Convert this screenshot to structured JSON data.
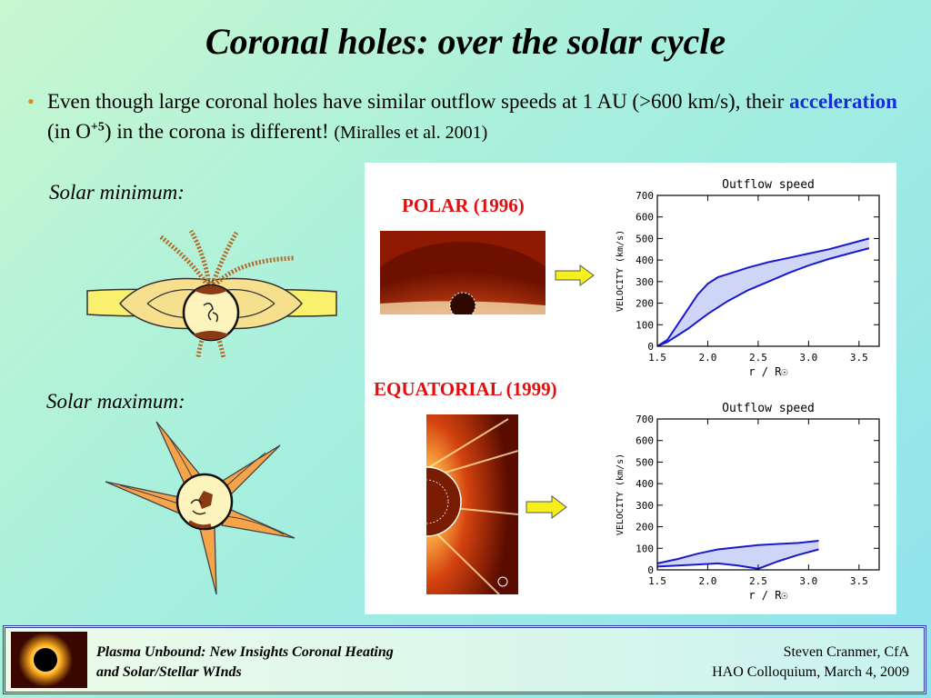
{
  "slide": {
    "title": "Coronal holes:  over the solar cycle",
    "bullet": {
      "part1": "Even though large coronal holes have similar outflow speeds at 1 AU (>600 km/s), their ",
      "accel": "acceleration",
      "part2": " (in O",
      "sup": "+5",
      "part3": ") in the corona is different!  ",
      "cite": "(Miralles et al. 2001)"
    },
    "solar_min_label": "Solar minimum:",
    "solar_max_label": "Solar maximum:",
    "polar_label": "POLAR (1996)",
    "equatorial_label": "EQUATORIAL (1999)"
  },
  "footer": {
    "left_line1": "Plasma Unbound:  New Insights Coronal Heating",
    "left_line2": "and Solar/Stellar WInds",
    "right_line1": "Steven Cranmer,  CfA",
    "right_line2": "HAO Colloquium, March 4, 2009"
  },
  "chart_data": [
    {
      "type": "area",
      "title": "Outflow speed",
      "xlabel": "r / R☉",
      "ylabel": "VELOCITY (km/s)",
      "xlim": [
        1.5,
        3.7
      ],
      "ylim": [
        0,
        700
      ],
      "xticks": [
        "1.5",
        "2.0",
        "2.5",
        "3.0",
        "3.5"
      ],
      "yticks": [
        "0",
        "100",
        "200",
        "300",
        "400",
        "500",
        "600",
        "700"
      ],
      "series": [
        {
          "x": [
            1.5,
            1.6,
            1.7,
            1.8,
            1.9,
            2.0,
            2.1,
            2.2,
            2.4,
            2.6,
            2.8,
            3.0,
            3.2,
            3.4,
            3.6
          ],
          "values": [
            0,
            30,
            100,
            170,
            240,
            290,
            320,
            335,
            365,
            390,
            410,
            430,
            450,
            475,
            500
          ]
        },
        {
          "x": [
            1.5,
            1.6,
            1.7,
            1.8,
            1.9,
            2.0,
            2.1,
            2.2,
            2.4,
            2.6,
            2.8,
            3.0,
            3.2,
            3.4,
            3.6
          ],
          "values": [
            0,
            20,
            50,
            80,
            115,
            150,
            180,
            210,
            260,
            300,
            340,
            375,
            405,
            430,
            455
          ]
        }
      ],
      "color": "#1a1acc",
      "fill": "#cfd5f7"
    },
    {
      "type": "area",
      "title": "Outflow speed",
      "xlabel": "r / R☉",
      "ylabel": "VELOCITY (km/s)",
      "xlim": [
        1.5,
        3.7
      ],
      "ylim": [
        0,
        700
      ],
      "xticks": [
        "1.5",
        "2.0",
        "2.5",
        "3.0",
        "3.5"
      ],
      "yticks": [
        "0",
        "100",
        "200",
        "300",
        "400",
        "500",
        "600",
        "700"
      ],
      "series": [
        {
          "x": [
            1.5,
            1.7,
            1.9,
            2.1,
            2.3,
            2.5,
            2.7,
            2.9,
            3.1
          ],
          "values": [
            30,
            50,
            75,
            95,
            105,
            115,
            120,
            125,
            135
          ]
        },
        {
          "x": [
            1.5,
            1.7,
            1.9,
            2.1,
            2.3,
            2.5,
            2.7,
            2.9,
            3.1
          ],
          "values": [
            15,
            20,
            25,
            30,
            20,
            5,
            40,
            70,
            95
          ]
        }
      ],
      "color": "#1a1acc",
      "fill": "#cfd5f7"
    }
  ]
}
